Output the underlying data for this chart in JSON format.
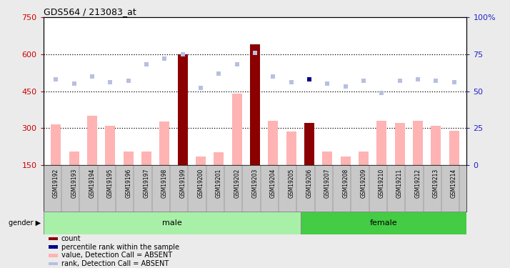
{
  "title": "GDS564 / 213083_at",
  "samples": [
    "GSM19192",
    "GSM19193",
    "GSM19194",
    "GSM19195",
    "GSM19196",
    "GSM19197",
    "GSM19198",
    "GSM19199",
    "GSM19200",
    "GSM19201",
    "GSM19202",
    "GSM19203",
    "GSM19204",
    "GSM19205",
    "GSM19206",
    "GSM19207",
    "GSM19208",
    "GSM19209",
    "GSM19210",
    "GSM19211",
    "GSM19212",
    "GSM19213",
    "GSM19214"
  ],
  "bar_values": [
    315,
    205,
    350,
    310,
    205,
    205,
    325,
    600,
    185,
    200,
    440,
    640,
    330,
    285,
    320,
    205,
    185,
    205,
    330,
    320,
    330,
    310,
    290
  ],
  "is_dark_bar": [
    false,
    false,
    false,
    false,
    false,
    false,
    false,
    true,
    false,
    false,
    false,
    true,
    false,
    false,
    true,
    false,
    false,
    false,
    false,
    false,
    false,
    false,
    false
  ],
  "rank_values": [
    58,
    55,
    60,
    56,
    57,
    68,
    72,
    75,
    52,
    62,
    68,
    76,
    60,
    56,
    58,
    55,
    53,
    57,
    49,
    57,
    58,
    57,
    56
  ],
  "is_dark_rank": [
    false,
    false,
    false,
    false,
    false,
    false,
    false,
    false,
    false,
    false,
    false,
    false,
    false,
    false,
    true,
    false,
    false,
    false,
    false,
    false,
    false,
    false,
    false
  ],
  "n_male": 14,
  "n_female": 9,
  "ylim_left": [
    150,
    750
  ],
  "ylim_right": [
    0,
    100
  ],
  "yticks_left": [
    150,
    300,
    450,
    600,
    750
  ],
  "yticks_right": [
    0,
    25,
    50,
    75,
    100
  ],
  "hlines": [
    300,
    450,
    600
  ],
  "background_color": "#ebebeb",
  "plot_bg": "#ffffff",
  "bar_color_normal": "#ffb3b3",
  "bar_color_dark": "#8b0000",
  "rank_color_normal": "#b8bfe0",
  "rank_color_dark": "#00008b",
  "gender_male_color": "#a8f0a8",
  "gender_female_color": "#44cc44",
  "left_tick_color": "#cc0000",
  "right_tick_color": "#2222cc",
  "xtick_bg": "#c8c8c8",
  "legend_items": [
    "count",
    "percentile rank within the sample",
    "value, Detection Call = ABSENT",
    "rank, Detection Call = ABSENT"
  ],
  "legend_colors": [
    "#8b0000",
    "#00008b",
    "#ffb3b3",
    "#b8bfe0"
  ]
}
